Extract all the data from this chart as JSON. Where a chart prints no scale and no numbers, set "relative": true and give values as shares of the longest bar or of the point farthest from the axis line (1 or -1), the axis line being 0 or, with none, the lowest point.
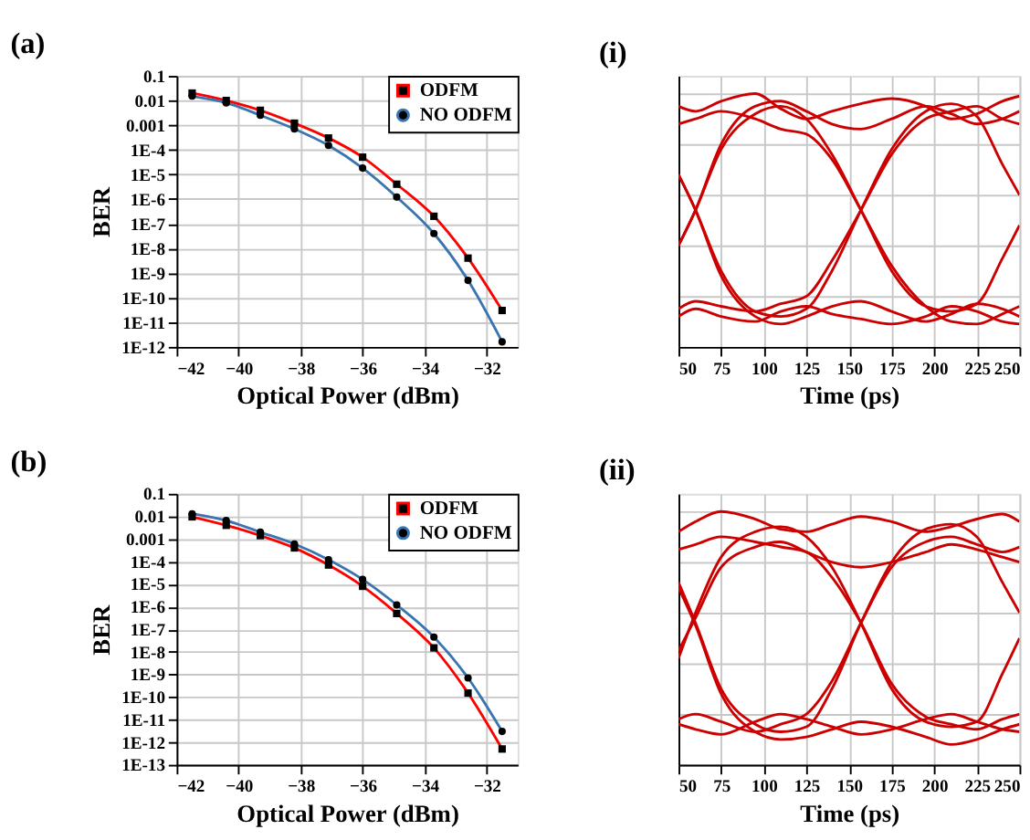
{
  "chart_data": [
    {
      "type": "line",
      "title": "(a)",
      "xlabel": "Optical Power (dBm)",
      "ylabel": "BER",
      "log": true,
      "grid": true,
      "legend": "top right",
      "x": [
        -41.5,
        -40.4,
        -39.3,
        -38.2,
        -37.1,
        -36.0,
        -34.9,
        -33.7,
        -32.6,
        -31.5
      ],
      "series": [
        {
          "name": "ODFM",
          "color": "#ff0000",
          "marker": "square",
          "values": [
            0.02,
            0.01,
            0.004,
            0.0012,
            0.0003,
            5e-05,
            4e-06,
            2e-07,
            4e-09,
            3e-11
          ]
        },
        {
          "name": "NO ODFM",
          "color": "#3b75af",
          "marker": "circle",
          "values": [
            0.015,
            0.008,
            0.0025,
            0.0007,
            0.00015,
            1.8e-05,
            1.2e-06,
            4e-08,
            5e-10,
            1.6e-12
          ]
        }
      ],
      "xlim": [
        -42,
        -31
      ],
      "xticks": [
        -42,
        -40,
        -38,
        -36,
        -34,
        -32
      ],
      "ylim": [
        1e-12,
        0.1
      ],
      "yticks": [
        0.1,
        0.01,
        0.001,
        {
          "value": 0.0001,
          "label": "1E-4"
        },
        {
          "value": 1e-05,
          "label": "1E-5"
        },
        {
          "value": 1e-06,
          "label": "1E-6"
        },
        {
          "value": 1e-07,
          "label": "1E-7"
        },
        {
          "value": 1e-08,
          "label": "1E-8"
        },
        {
          "value": 1e-09,
          "label": "1E-9"
        },
        {
          "value": 1e-10,
          "label": "1E-10"
        },
        {
          "value": 1e-11,
          "label": "1E-11"
        },
        {
          "value": 1e-12,
          "label": "1E-12"
        }
      ]
    },
    {
      "type": "line",
      "title": "(i)",
      "xlabel": "Time (ps)",
      "relative": true,
      "grid": true,
      "tick_labels": "x",
      "x": [
        50,
        60,
        75,
        95,
        110,
        125,
        140,
        157,
        175,
        195,
        210,
        225,
        240,
        250
      ],
      "series": [
        {
          "color": "#cc0000",
          "values": [
            0.95,
            0.93,
            0.97,
            1.0,
            0.94,
            0.9,
            0.93,
            0.96,
            0.98,
            0.95,
            0.9,
            0.92,
            0.97,
            0.99
          ]
        },
        {
          "color": "#cc0000",
          "values": [
            0.12,
            0.15,
            0.12,
            0.1,
            0.14,
            0.16,
            0.13,
            0.11,
            0.09,
            0.12,
            0.16,
            0.14,
            0.1,
            0.09
          ]
        },
        {
          "color": "#cc0000",
          "values": [
            0.4,
            0.54,
            0.78,
            0.92,
            0.95,
            0.9,
            0.76,
            0.54,
            0.3,
            0.16,
            0.14,
            0.17,
            0.35,
            0.48
          ]
        },
        {
          "color": "#cc0000",
          "values": [
            0.68,
            0.54,
            0.3,
            0.14,
            0.12,
            0.15,
            0.3,
            0.54,
            0.78,
            0.93,
            0.96,
            0.91,
            0.72,
            0.6
          ]
        },
        {
          "color": "#cc0000",
          "values": [
            0.4,
            0.54,
            0.8,
            0.95,
            0.97,
            0.93,
            0.88,
            0.86,
            0.9,
            0.95,
            0.92,
            0.88,
            0.9,
            0.93
          ]
        },
        {
          "color": "#cc0000",
          "values": [
            0.68,
            0.54,
            0.28,
            0.12,
            0.09,
            0.12,
            0.16,
            0.18,
            0.14,
            0.1,
            0.13,
            0.17,
            0.15,
            0.12
          ]
        },
        {
          "color": "#cc0000",
          "values": [
            0.15,
            0.18,
            0.16,
            0.14,
            0.17,
            0.2,
            0.34,
            0.54,
            0.76,
            0.9,
            0.93,
            0.95,
            0.9,
            0.88
          ]
        },
        {
          "color": "#cc0000",
          "values": [
            0.88,
            0.9,
            0.93,
            0.9,
            0.86,
            0.84,
            0.74,
            0.54,
            0.32,
            0.16,
            0.1,
            0.09,
            0.13,
            0.16
          ]
        }
      ],
      "xlim": [
        50,
        250
      ],
      "xticks": [
        50,
        75,
        100,
        125,
        150,
        175,
        200,
        225,
        250
      ]
    },
    {
      "type": "line",
      "title": "(b)",
      "xlabel": "Optical Power (dBm)",
      "ylabel": "BER",
      "log": true,
      "grid": true,
      "legend": "top right",
      "x": [
        -41.5,
        -40.4,
        -39.3,
        -38.2,
        -37.1,
        -36.0,
        -34.9,
        -33.7,
        -32.6,
        -31.5
      ],
      "series": [
        {
          "name": "ODFM",
          "color": "#ff0000",
          "marker": "square",
          "values": [
            0.0095,
            0.004,
            0.0014,
            0.0004,
            7e-05,
            8e-06,
            5e-07,
            1.5e-08,
            1.5e-10,
            5e-13
          ]
        },
        {
          "name": "NO ODFM",
          "color": "#3b75af",
          "marker": "circle",
          "values": [
            0.013,
            0.0065,
            0.002,
            0.0006,
            0.00012,
            1.6e-05,
            1.2e-06,
            4.5e-08,
            7e-10,
            3e-12
          ]
        }
      ],
      "xlim": [
        -42,
        -31
      ],
      "xticks": [
        -42,
        -40,
        -38,
        -36,
        -34,
        -32
      ],
      "ylim": [
        1e-13,
        0.1
      ],
      "yticks": [
        0.1,
        0.01,
        0.001,
        {
          "value": 0.0001,
          "label": "1E-4"
        },
        {
          "value": 1e-05,
          "label": "1E-5"
        },
        {
          "value": 1e-06,
          "label": "1E-6"
        },
        {
          "value": 1e-07,
          "label": "1E-7"
        },
        {
          "value": 1e-08,
          "label": "1E-8"
        },
        {
          "value": 1e-09,
          "label": "1E-9"
        },
        {
          "value": 1e-10,
          "label": "1E-10"
        },
        {
          "value": 1e-11,
          "label": "1E-11"
        },
        {
          "value": 1e-12,
          "label": "1E-12"
        },
        {
          "value": 1e-13,
          "label": "1E-13"
        }
      ]
    },
    {
      "type": "line",
      "title": "(ii)",
      "xlabel": "Time (ps)",
      "relative": true,
      "grid": true,
      "tick_labels": "x",
      "x": [
        50,
        60,
        75,
        95,
        110,
        125,
        140,
        157,
        175,
        195,
        210,
        225,
        240,
        250
      ],
      "series": [
        {
          "color": "#cc0000",
          "values": [
            0.92,
            0.96,
            1.0,
            0.97,
            0.93,
            0.92,
            0.95,
            0.98,
            0.96,
            0.92,
            0.94,
            0.97,
            0.99,
            0.96
          ]
        },
        {
          "color": "#cc0000",
          "values": [
            0.16,
            0.14,
            0.12,
            0.17,
            0.2,
            0.18,
            0.15,
            0.12,
            0.14,
            0.18,
            0.2,
            0.17,
            0.14,
            0.13
          ]
        },
        {
          "color": "#cc0000",
          "values": [
            0.42,
            0.6,
            0.82,
            0.92,
            0.94,
            0.9,
            0.78,
            0.56,
            0.3,
            0.17,
            0.15,
            0.17,
            0.36,
            0.5
          ]
        },
        {
          "color": "#cc0000",
          "values": [
            0.72,
            0.56,
            0.3,
            0.16,
            0.13,
            0.15,
            0.3,
            0.56,
            0.8,
            0.93,
            0.95,
            0.9,
            0.72,
            0.6
          ]
        },
        {
          "color": "#cc0000",
          "values": [
            0.45,
            0.58,
            0.78,
            0.86,
            0.88,
            0.84,
            0.8,
            0.78,
            0.8,
            0.84,
            0.87,
            0.85,
            0.82,
            0.8
          ]
        },
        {
          "color": "#cc0000",
          "values": [
            0.7,
            0.55,
            0.28,
            0.13,
            0.1,
            0.11,
            0.14,
            0.17,
            0.15,
            0.11,
            0.08,
            0.1,
            0.14,
            0.16
          ]
        },
        {
          "color": "#cc0000",
          "values": [
            0.18,
            0.2,
            0.17,
            0.13,
            0.16,
            0.2,
            0.33,
            0.56,
            0.78,
            0.88,
            0.9,
            0.87,
            0.84,
            0.86
          ]
        },
        {
          "color": "#cc0000",
          "values": [
            0.85,
            0.87,
            0.9,
            0.88,
            0.86,
            0.84,
            0.74,
            0.56,
            0.32,
            0.19,
            0.16,
            0.14,
            0.18,
            0.2
          ]
        }
      ],
      "xlim": [
        50,
        250
      ],
      "xticks": [
        50,
        75,
        100,
        125,
        150,
        175,
        200,
        225,
        250
      ]
    }
  ]
}
